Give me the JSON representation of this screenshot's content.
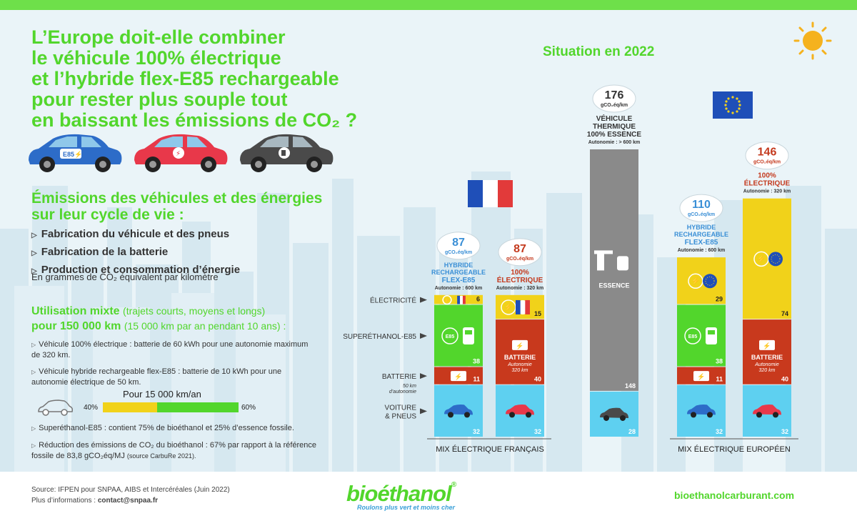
{
  "title_lines": [
    "L’Europe doit-elle combiner",
    "le véhicule 100% électrique",
    "et l’hybride flex-E85 rechargeable",
    "pour rester plus souple tout",
    "en baissant les émissions de CO₂ ?"
  ],
  "section_title_lines": [
    "Émissions des véhicules et des énergies",
    "sur leur cycle de vie :"
  ],
  "bullets": [
    "Fabrication du véhicule et des pneus",
    "Fabrication de la batterie",
    "Production et consommation d’énergie"
  ],
  "unit_note": "En grammes de CO₂ équivalent par kilomètre",
  "usage": {
    "line1_bold": "Utilisation mixte",
    "line1_light": "(trajets courts, moyens et longs)",
    "line2_bold": "pour 150 000 km",
    "line2_light": "(15 000 km par an pendant 10 ans) :"
  },
  "notes": [
    "Véhicule 100% électrique : batterie de 60 kWh pour une autonomie maximum de 320 km.",
    "Véhicule hybride rechargeable flex-E85 : batterie de 10 kWh pour une autonomie électrique de 50 km.",
    "Superéthanol-E85 : contient 75% de bioéthanol et 25% d’essence fossile.",
    "Réduction des émissions de CO₂ du bioéthanol : 67% par rapport à la référence fossile de 83,8 gCO₂éq/MJ",
    "(source CarbuRe 2021)."
  ],
  "km_title": "Pour 15 000 km/an",
  "mix": {
    "left_label": "40%",
    "right_label": "60%",
    "left_share": 40,
    "right_share": 60
  },
  "footer": {
    "source": "Source: IFPEN pour SNPAA, AIBS et Intercéréales (Juin 2022)",
    "more_info": "Plus d’informations : ",
    "contact": "contact@snpaa.fr",
    "brand": "bioéthanol",
    "brand_reg": "®",
    "slogan": "Roulons plus vert et moins cher",
    "website": "bioethanolcarburant.com"
  },
  "colors": {
    "green": "#52d62c",
    "blue_label": "#3a8fd6",
    "red_label": "#c43a1e",
    "voiture": "#5ed0f0",
    "batterie": "#c8391d",
    "superethanol": "#52d62c",
    "electricite": "#f1d21a",
    "essence": "#8a8a8a"
  },
  "chart_data": {
    "type": "bar",
    "title": "Situation en 2022",
    "unit": "gCO₂éq/km",
    "segment_labels": [
      "ÉLECTRICITÉ",
      "SUPERÉTHANOL-E85",
      "BATTERIE",
      "VOITURE & PNEUS"
    ],
    "batterie_note": "50 km d’autonomie",
    "group_labels": [
      "MIX ÉLECTRIQUE FRANÇAIS",
      "MIX ÉLECTRIQUE EUROPÉEN"
    ],
    "bars": [
      {
        "id": "fr-hybride",
        "total": 87,
        "name_lines": [
          "HYBRIDE",
          "RECHARGEABLE",
          "FLEX-E85"
        ],
        "autonomie": "Autonomie : 600 km",
        "label_color": "blue",
        "segments": [
          {
            "kind": "voiture",
            "value": 32
          },
          {
            "kind": "batterie",
            "value": 11
          },
          {
            "kind": "superethanol",
            "value": 38
          },
          {
            "kind": "electricite",
            "value": 6
          }
        ]
      },
      {
        "id": "fr-electrique",
        "total": 87,
        "name_lines": [
          "100%",
          "ÉLECTRIQUE"
        ],
        "autonomie": "Autonomie : 320 km",
        "label_color": "red",
        "segments": [
          {
            "kind": "voiture",
            "value": 32
          },
          {
            "kind": "batterie",
            "value": 40,
            "text": "BATTERIE",
            "sub_lines": [
              "Autonomie",
              "320 km"
            ]
          },
          {
            "kind": "electricite",
            "value": 15
          }
        ]
      },
      {
        "id": "thermique",
        "total": 176,
        "name_lines": [
          "VÉHICULE",
          "THERMIQUE",
          "100% ESSENCE"
        ],
        "autonomie": "Autonomie : > 600 km",
        "label_color": "dark",
        "segments": [
          {
            "kind": "voiture",
            "value": 28
          },
          {
            "kind": "essence",
            "value": 148,
            "text": "ESSENCE"
          }
        ]
      },
      {
        "id": "eu-hybride",
        "total": 110,
        "name_lines": [
          "HYBRIDE",
          "RECHARGEABLE",
          "FLEX-E85"
        ],
        "autonomie": "Autonomie : 600 km",
        "label_color": "blue",
        "segments": [
          {
            "kind": "voiture",
            "value": 32
          },
          {
            "kind": "batterie",
            "value": 11
          },
          {
            "kind": "superethanol",
            "value": 38
          },
          {
            "kind": "electricite",
            "value": 29
          }
        ]
      },
      {
        "id": "eu-electrique",
        "total": 146,
        "name_lines": [
          "100%",
          "ÉLECTRIQUE"
        ],
        "autonomie": "Autonomie : 320 km",
        "label_color": "red",
        "segments": [
          {
            "kind": "voiture",
            "value": 32
          },
          {
            "kind": "batterie",
            "value": 40,
            "text": "BATTERIE",
            "sub_lines": [
              "Autonomie",
              "320 km"
            ]
          },
          {
            "kind": "electricite",
            "value": 74
          }
        ]
      }
    ]
  }
}
